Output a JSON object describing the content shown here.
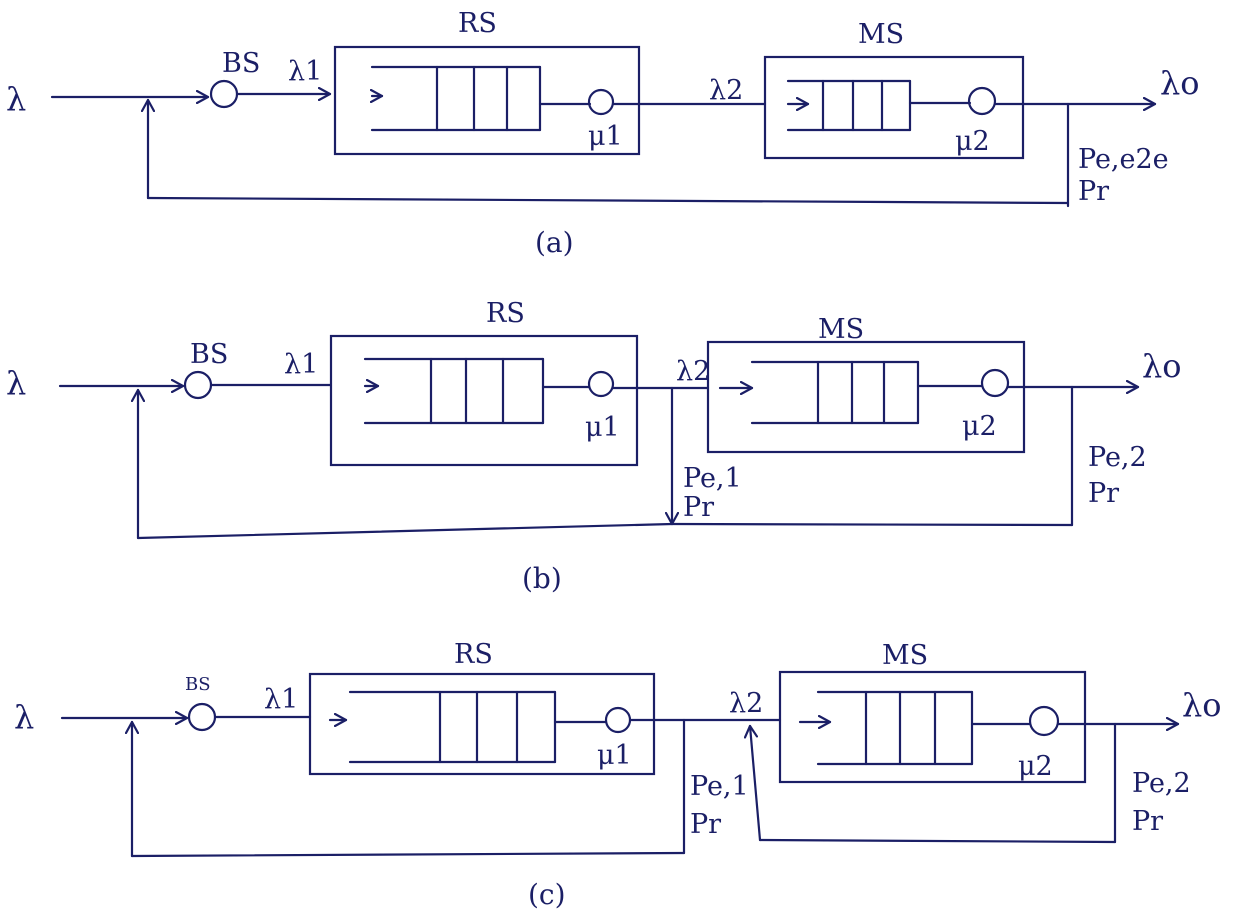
{
  "labels": {
    "lambda": "λ",
    "lambda_1": "λ1",
    "lambda_2": "λ2",
    "lambda_0": "λo",
    "bs": "BS",
    "rs": "RS",
    "ms": "MS",
    "mu_1": "μ1",
    "mu_2": "μ2",
    "p_e_e2e": "Pe,e2e",
    "p_e_1": "Pe,1",
    "p_e_2": "Pe,2",
    "p_r": "Pr"
  },
  "captions": {
    "a": "(a)",
    "b": "(b)",
    "c": "(c)"
  }
}
